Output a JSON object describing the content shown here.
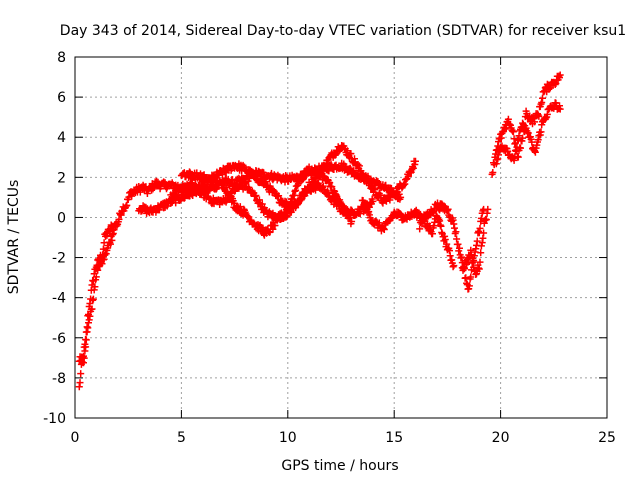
{
  "chart_data": {
    "type": "scatter",
    "title": "Day 343 of 2014, Sidereal Day-to-day VTEC variation (SDTVAR) for receiver ksu1",
    "xlabel": "GPS time / hours",
    "ylabel": "SDTVAR / TECUs",
    "xlim": [
      0,
      25
    ],
    "ylim": [
      -10,
      8
    ],
    "x_ticks": [
      0,
      5,
      10,
      15,
      20,
      25
    ],
    "y_ticks": [
      -10,
      -8,
      -6,
      -4,
      -2,
      0,
      2,
      4,
      6,
      8
    ],
    "x_tick_labels": [
      "0",
      "5",
      "10",
      "15",
      "20",
      "25"
    ],
    "y_tick_labels": [
      "-10",
      "-8",
      "-6",
      "-4",
      "-2",
      "0",
      "2",
      "4",
      "6",
      "8"
    ],
    "grid": true,
    "marker": "+",
    "marker_color": "#ff0000",
    "series": [
      {
        "name": "ksu1",
        "tracks": [
          {
            "x": [
              0.2,
              0.3,
              0.4,
              0.5,
              0.6,
              0.7,
              0.8,
              0.9,
              1.0,
              1.1,
              1.2,
              1.3,
              1.4,
              1.5,
              1.6,
              1.7,
              1.8,
              2.0,
              2.2,
              2.4,
              2.6,
              2.8,
              3.0,
              3.2,
              3.4,
              3.6,
              3.8,
              4.0,
              4.5,
              5.0,
              5.5,
              6.0,
              6.5,
              7.0,
              7.5,
              8.0,
              8.5,
              9.0,
              9.5,
              10.0,
              10.5,
              11.0,
              11.5,
              12.0,
              12.5,
              13.0,
              13.5,
              14.0,
              14.5,
              15.0,
              15.3
            ],
            "y": [
              -8.5,
              -7.5,
              -6.8,
              -6.2,
              -5.0,
              -4.2,
              -3.5,
              -2.8,
              -2.4,
              -2.2,
              -2.0,
              -1.8,
              -1.0,
              -0.8,
              -0.7,
              -0.5,
              -0.5,
              -0.3,
              0.4,
              0.6,
              1.2,
              1.3,
              1.4,
              1.5,
              1.3,
              1.5,
              1.7,
              1.6,
              1.6,
              1.5,
              1.4,
              1.3,
              1.5,
              1.8,
              1.7,
              1.9,
              2.2,
              2.1,
              2.0,
              1.9,
              2.0,
              2.2,
              2.4,
              2.5,
              2.6,
              2.3,
              2.0,
              1.8,
              1.5,
              1.2,
              1.0
            ]
          },
          {
            "x": [
              0.2,
              0.4,
              0.6,
              0.8,
              1.0,
              1.2,
              1.5,
              1.8
            ],
            "y": [
              -7.0,
              -7.2,
              -5.5,
              -4.5,
              -2.8,
              -2.3,
              -1.6,
              -0.8
            ]
          },
          {
            "x": [
              3.0,
              3.5,
              4.0,
              4.5,
              5.0,
              5.5,
              6.0,
              6.5,
              7.0,
              7.5,
              8.0,
              8.5,
              9.0,
              9.5,
              10.0,
              10.5,
              11.0,
              11.5,
              12.0,
              12.5,
              13.0,
              13.5,
              14.0,
              14.5,
              15.0,
              15.5,
              16.0
            ],
            "y": [
              0.5,
              0.3,
              0.5,
              0.8,
              1.0,
              1.2,
              1.6,
              2.0,
              2.3,
              2.6,
              2.4,
              2.0,
              1.6,
              1.0,
              0.6,
              0.8,
              1.6,
              2.2,
              3.0,
              3.6,
              3.0,
              2.2,
              1.4,
              0.8,
              1.2,
              1.8,
              2.8
            ]
          },
          {
            "x": [
              4.5,
              5.0,
              5.5,
              6.0,
              6.5,
              7.0,
              7.5,
              8.0,
              8.5,
              9.0,
              9.5,
              10.0,
              10.5,
              11.0,
              11.5,
              12.0,
              12.5,
              13.0,
              13.5,
              14.0
            ],
            "y": [
              1.0,
              1.4,
              1.6,
              1.2,
              0.8,
              0.8,
              1.4,
              1.6,
              1.0,
              0.2,
              0.0,
              0.2,
              0.8,
              1.4,
              1.6,
              1.0,
              0.4,
              0.2,
              0.4,
              0.8
            ]
          },
          {
            "x": [
              5.0,
              6.0,
              7.0,
              7.5,
              8.0,
              8.5,
              9.0,
              9.5,
              10.0,
              10.5,
              11.0,
              11.5,
              12.0,
              12.5,
              13.0
            ],
            "y": [
              2.2,
              2.0,
              1.6,
              0.6,
              0.2,
              -0.4,
              -0.8,
              -0.2,
              0.4,
              1.8,
              2.4,
              2.2,
              1.6,
              0.6,
              -0.2
            ]
          },
          {
            "x": [
              13.5,
              14.0,
              14.5,
              15.0,
              15.5,
              16.0,
              16.5,
              17.0,
              17.5,
              17.8,
              18.0,
              18.2,
              18.4,
              18.5,
              18.6,
              18.8,
              19.0,
              19.2
            ],
            "y": [
              0.8,
              -0.2,
              -0.6,
              0.2,
              0.0,
              0.2,
              0.0,
              0.6,
              0.4,
              -0.3,
              -1.4,
              -2.2,
              -3.2,
              -3.7,
              -2.8,
              -1.6,
              -0.6,
              0.4
            ]
          },
          {
            "x": [
              16.2,
              16.4,
              16.8,
              17.0,
              17.2,
              17.4,
              17.6,
              17.8
            ],
            "y": [
              -0.4,
              -0.2,
              -0.8,
              0.2,
              -0.6,
              -1.2,
              -1.8,
              -2.4
            ]
          },
          {
            "x": [
              18.2,
              18.4,
              18.6,
              18.8,
              19.0,
              19.2,
              19.4
            ],
            "y": [
              -2.6,
              -2.2,
              -1.8,
              -2.8,
              -2.4,
              -0.6,
              0.4
            ]
          },
          {
            "x": [
              19.6,
              19.8,
              20.0,
              20.2,
              20.4,
              20.6,
              20.8,
              21.0,
              21.2,
              21.5,
              21.8,
              22.0,
              22.3,
              22.6,
              22.8
            ],
            "y": [
              2.2,
              3.4,
              4.0,
              4.4,
              4.8,
              4.2,
              3.0,
              3.8,
              5.2,
              4.8,
              5.2,
              6.2,
              6.6,
              6.8,
              7.1
            ]
          },
          {
            "x": [
              19.8,
              20.0,
              20.3,
              20.6,
              21.0,
              21.3,
              21.6,
              22.0,
              22.3,
              22.6,
              22.8
            ],
            "y": [
              2.6,
              3.6,
              3.4,
              2.8,
              4.6,
              4.2,
              3.2,
              4.8,
              5.4,
              5.6,
              5.4
            ]
          }
        ]
      }
    ]
  }
}
